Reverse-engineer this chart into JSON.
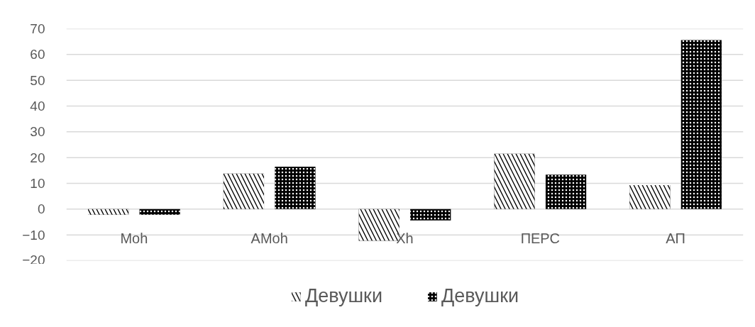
{
  "chart_data": {
    "type": "bar",
    "categories": [
      "Moh",
      "AMoh",
      "Xh",
      "ПЕРС",
      "АП"
    ],
    "series": [
      {
        "name": "Девушки",
        "color": "#000000",
        "values": [
          -2.2,
          13.8,
          -12.3,
          21.5,
          9.3
        ]
      },
      {
        "name": "Девушки",
        "color": "#000000",
        "values": [
          -2.2,
          16.5,
          -4.4,
          13.4,
          65.6
        ]
      }
    ],
    "ylim": [
      -20,
      70
    ],
    "yticks": [
      -20,
      -10,
      0,
      10,
      20,
      30,
      40,
      50,
      60,
      70
    ],
    "grid": "y",
    "legend": "bottom"
  }
}
